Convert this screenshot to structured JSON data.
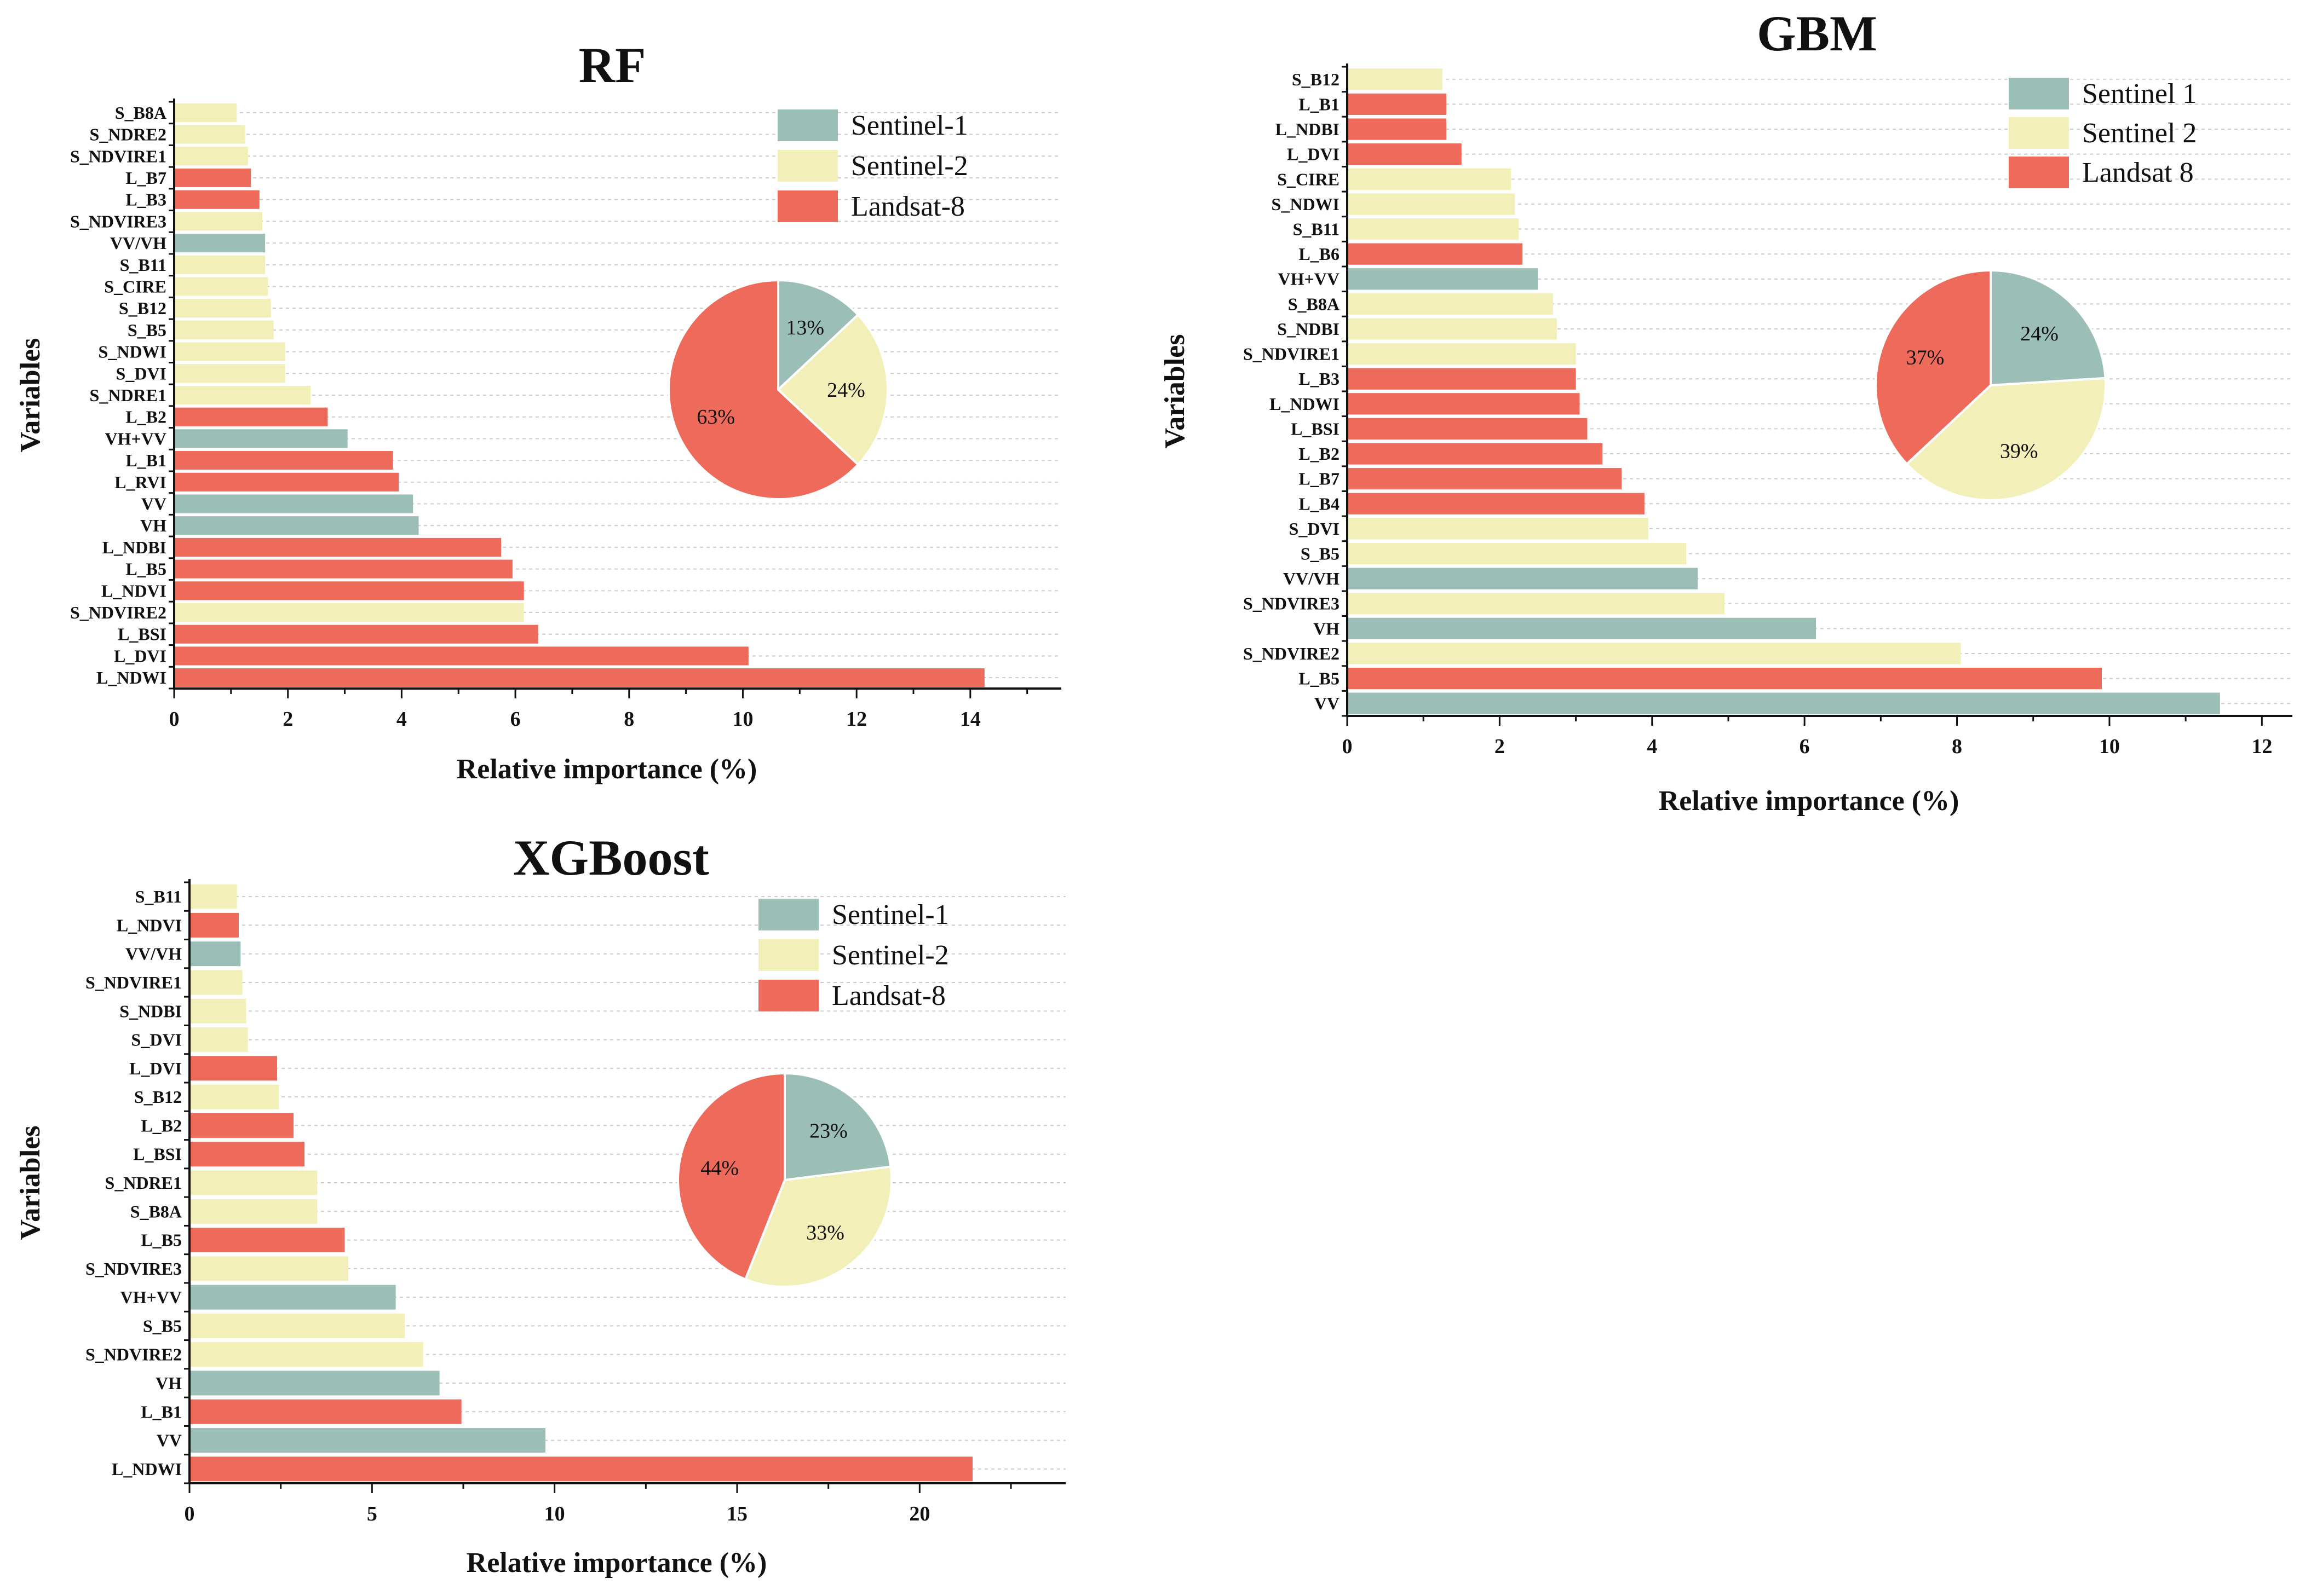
{
  "chart_data": [
    {
      "id": "rf",
      "type": "bar",
      "title": "RF",
      "xlabel": "Relative importance (%)",
      "ylabel": "Variables",
      "xlim": [
        0,
        15.6
      ],
      "xticks": [
        0,
        2,
        4,
        6,
        8,
        10,
        12,
        14
      ],
      "grid": "horizontal dashed",
      "bars": [
        {
          "label": "S_B8A",
          "value": 1.1,
          "source": "Sentinel-2"
        },
        {
          "label": "S_NDRE2",
          "value": 1.25,
          "source": "Sentinel-2"
        },
        {
          "label": "S_NDVIRE1",
          "value": 1.3,
          "source": "Sentinel-2"
        },
        {
          "label": "L_B7",
          "value": 1.35,
          "source": "Landsat-8"
        },
        {
          "label": "L_B3",
          "value": 1.5,
          "source": "Landsat-8"
        },
        {
          "label": "S_NDVIRE3",
          "value": 1.55,
          "source": "Sentinel-2"
        },
        {
          "label": "VV/VH",
          "value": 1.6,
          "source": "Sentinel-1"
        },
        {
          "label": "S_B11",
          "value": 1.6,
          "source": "Sentinel-2"
        },
        {
          "label": "S_CIRE",
          "value": 1.65,
          "source": "Sentinel-2"
        },
        {
          "label": "S_B12",
          "value": 1.7,
          "source": "Sentinel-2"
        },
        {
          "label": "S_B5",
          "value": 1.75,
          "source": "Sentinel-2"
        },
        {
          "label": "S_NDWI",
          "value": 1.95,
          "source": "Sentinel-2"
        },
        {
          "label": "S_DVI",
          "value": 1.95,
          "source": "Sentinel-2"
        },
        {
          "label": "S_NDRE1",
          "value": 2.4,
          "source": "Sentinel-2"
        },
        {
          "label": "L_B2",
          "value": 2.7,
          "source": "Landsat-8"
        },
        {
          "label": "VH+VV",
          "value": 3.05,
          "source": "Sentinel-1"
        },
        {
          "label": "L_B1",
          "value": 3.85,
          "source": "Landsat-8"
        },
        {
          "label": "L_RVI",
          "value": 3.95,
          "source": "Landsat-8"
        },
        {
          "label": "VV",
          "value": 4.2,
          "source": "Sentinel-1"
        },
        {
          "label": "VH",
          "value": 4.3,
          "source": "Sentinel-1"
        },
        {
          "label": "L_NDBI",
          "value": 5.75,
          "source": "Landsat-8"
        },
        {
          "label": "L_B5",
          "value": 5.95,
          "source": "Landsat-8"
        },
        {
          "label": "L_NDVI",
          "value": 6.15,
          "source": "Landsat-8"
        },
        {
          "label": "S_NDVIRE2",
          "value": 6.15,
          "source": "Sentinel-2"
        },
        {
          "label": "L_BSI",
          "value": 6.4,
          "source": "Landsat-8"
        },
        {
          "label": "L_DVI",
          "value": 10.1,
          "source": "Landsat-8"
        },
        {
          "label": "L_NDWI",
          "value": 14.25,
          "source": "Landsat-8"
        }
      ],
      "legend": [
        "Sentinel-1",
        "Sentinel-2",
        "Landsat-8"
      ],
      "legend_position": "top-right",
      "pie": [
        {
          "name": "Sentinel-1",
          "value": 13,
          "label": "13%"
        },
        {
          "name": "Sentinel-2",
          "value": 24,
          "label": "24%"
        },
        {
          "name": "Landsat-8",
          "value": 63,
          "label": "63%"
        }
      ]
    },
    {
      "id": "gbm",
      "type": "bar",
      "title": "GBM",
      "xlabel": "Relative importance (%)",
      "ylabel": "Variables",
      "xlim": [
        0,
        12.4
      ],
      "xticks": [
        0,
        2,
        4,
        6,
        8,
        10,
        12
      ],
      "grid": "horizontal dashed",
      "bars": [
        {
          "label": "S_B12",
          "value": 1.25,
          "source": "Sentinel 2"
        },
        {
          "label": "L_B1",
          "value": 1.3,
          "source": "Landsat 8"
        },
        {
          "label": "L_NDBI",
          "value": 1.3,
          "source": "Landsat 8"
        },
        {
          "label": "L_DVI",
          "value": 1.5,
          "source": "Landsat 8"
        },
        {
          "label": "S_CIRE",
          "value": 2.15,
          "source": "Sentinel 2"
        },
        {
          "label": "S_NDWI",
          "value": 2.2,
          "source": "Sentinel 2"
        },
        {
          "label": "S_B11",
          "value": 2.25,
          "source": "Sentinel 2"
        },
        {
          "label": "L_B6",
          "value": 2.3,
          "source": "Landsat 8"
        },
        {
          "label": "VH+VV",
          "value": 2.5,
          "source": "Sentinel 1"
        },
        {
          "label": "S_B8A",
          "value": 2.7,
          "source": "Sentinel 2"
        },
        {
          "label": "S_NDBI",
          "value": 2.75,
          "source": "Sentinel 2"
        },
        {
          "label": "S_NDVIRE1",
          "value": 3.0,
          "source": "Sentinel 2"
        },
        {
          "label": "L_B3",
          "value": 3.0,
          "source": "Landsat 8"
        },
        {
          "label": "L_NDWI",
          "value": 3.05,
          "source": "Landsat 8"
        },
        {
          "label": "L_BSI",
          "value": 3.15,
          "source": "Landsat 8"
        },
        {
          "label": "L_B2",
          "value": 3.35,
          "source": "Landsat 8"
        },
        {
          "label": "L_B7",
          "value": 3.6,
          "source": "Landsat 8"
        },
        {
          "label": "L_B4",
          "value": 3.9,
          "source": "Landsat 8"
        },
        {
          "label": "S_DVI",
          "value": 3.95,
          "source": "Sentinel 2"
        },
        {
          "label": "S_B5",
          "value": 4.45,
          "source": "Sentinel 2"
        },
        {
          "label": "VV/VH",
          "value": 4.6,
          "source": "Sentinel 1"
        },
        {
          "label": "S_NDVIRE3",
          "value": 4.95,
          "source": "Sentinel 2"
        },
        {
          "label": "VH",
          "value": 6.15,
          "source": "Sentinel 1"
        },
        {
          "label": "S_NDVIRE2",
          "value": 8.05,
          "source": "Sentinel 2"
        },
        {
          "label": "L_B5",
          "value": 9.9,
          "source": "Landsat 8"
        },
        {
          "label": "VV",
          "value": 11.45,
          "source": "Sentinel 1"
        }
      ],
      "legend": [
        "Sentinel 1",
        "Sentinel 2",
        "Landsat 8"
      ],
      "legend_position": "top-right",
      "pie": [
        {
          "name": "Sentinel 1",
          "value": 24,
          "label": "24%"
        },
        {
          "name": "Sentinel 2",
          "value": 39,
          "label": "39%"
        },
        {
          "name": "Landsat 8",
          "value": 37,
          "label": "37%"
        }
      ]
    },
    {
      "id": "xgb",
      "type": "bar",
      "title": "XGBoost",
      "xlabel": "Relative importance (%)",
      "ylabel": "Variables",
      "xlim": [
        0,
        24
      ],
      "xticks": [
        0,
        5,
        10,
        15,
        20
      ],
      "grid": "horizontal dashed",
      "bars": [
        {
          "label": "S_B11",
          "value": 1.3,
          "source": "Sentinel-2"
        },
        {
          "label": "L_NDVI",
          "value": 1.35,
          "source": "Landsat-8"
        },
        {
          "label": "VV/VH",
          "value": 1.4,
          "source": "Sentinel-1"
        },
        {
          "label": "S_NDVIRE1",
          "value": 1.45,
          "source": "Sentinel-2"
        },
        {
          "label": "S_NDBI",
          "value": 1.55,
          "source": "Sentinel-2"
        },
        {
          "label": "S_DVI",
          "value": 1.6,
          "source": "Sentinel-2"
        },
        {
          "label": "L_DVI",
          "value": 2.4,
          "source": "Landsat-8"
        },
        {
          "label": "S_B12",
          "value": 2.45,
          "source": "Sentinel-2"
        },
        {
          "label": "L_B2",
          "value": 2.85,
          "source": "Landsat-8"
        },
        {
          "label": "L_BSI",
          "value": 3.15,
          "source": "Landsat-8"
        },
        {
          "label": "S_NDRE1",
          "value": 3.5,
          "source": "Sentinel-2"
        },
        {
          "label": "S_B8A",
          "value": 3.5,
          "source": "Sentinel-2"
        },
        {
          "label": "L_B5",
          "value": 4.25,
          "source": "Landsat-8"
        },
        {
          "label": "S_NDVIRE3",
          "value": 4.35,
          "source": "Sentinel-2"
        },
        {
          "label": "VH+VV",
          "value": 5.65,
          "source": "Sentinel-1"
        },
        {
          "label": "S_B5",
          "value": 5.9,
          "source": "Sentinel-2"
        },
        {
          "label": "S_NDVIRE2",
          "value": 6.4,
          "source": "Sentinel-2"
        },
        {
          "label": "VH",
          "value": 6.85,
          "source": "Sentinel-1"
        },
        {
          "label": "L_B1",
          "value": 7.45,
          "source": "Landsat-8"
        },
        {
          "label": "VV",
          "value": 9.75,
          "source": "Sentinel-1"
        },
        {
          "label": "L_NDWI",
          "value": 21.45,
          "source": "Landsat-8"
        }
      ],
      "legend": [
        "Sentinel-1",
        "Sentinel-2",
        "Landsat-8"
      ],
      "legend_position": "top-right",
      "pie": [
        {
          "name": "Sentinel-1",
          "value": 23,
          "label": "23%"
        },
        {
          "name": "Sentinel-2",
          "value": 33,
          "label": "33%"
        },
        {
          "name": "Landsat-8",
          "value": 44,
          "label": "44%"
        }
      ]
    }
  ],
  "colors": {
    "sentinel1": "#9bbfb7",
    "sentinel2": "#f2efb8",
    "landsat8": "#ee6a5a",
    "axis": "#111111",
    "grid": "#cccccc"
  }
}
